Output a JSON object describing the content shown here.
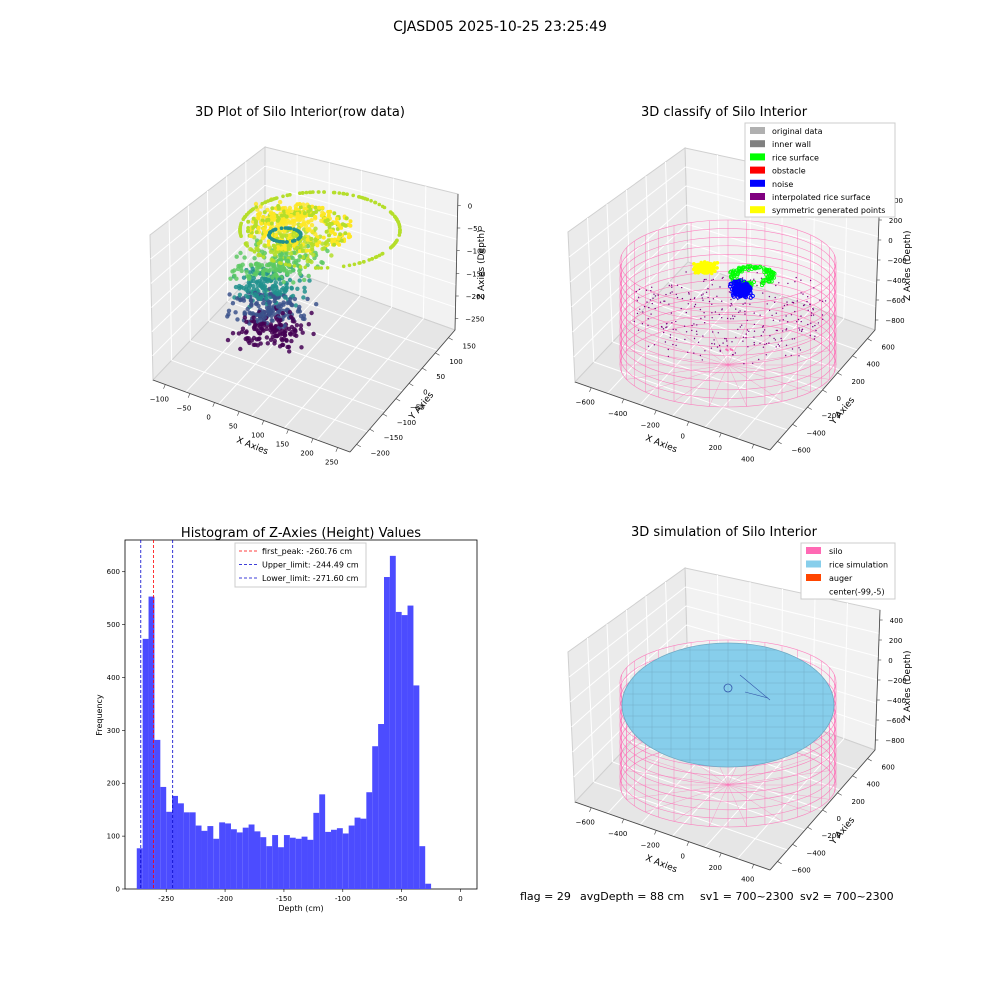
{
  "figure": {
    "suptitle": "CJASD05 2025-10-25 23:25:49",
    "status": {
      "flag": "flag = 29",
      "avg_depth": "avgDepth = 88 cm",
      "sv1": "sv1 = 700~2300",
      "sv2": "sv2 = 700~2300"
    }
  },
  "colors": {
    "viridis": [
      "#440154",
      "#3b528b",
      "#21908d",
      "#5dc963",
      "#b5de2b",
      "#fde725"
    ],
    "original_data": "#b0b0b0",
    "inner_wall": "#808080",
    "rice_surface": "#00ff00",
    "obstacle": "#ff0000",
    "noise": "#0000ff",
    "interpolated": "#800080",
    "symmetric": "#ffff00",
    "silo": "#ff69b4",
    "rice_sim": "#87ceeb",
    "auger": "#ff4500",
    "hist_bar": "#4c4cff",
    "peak_line": "#ff0000",
    "limit_line": "#0000cc"
  },
  "chart_data": [
    {
      "type": "scatter",
      "title": "3D Plot of Silo Interior(row data)",
      "xlabel": "X Axies",
      "ylabel": "Y Axies",
      "zlabel": "Z Axies (Depth)",
      "x_ticks": [
        "−100",
        "−50",
        "0",
        "50",
        "100",
        "150",
        "200",
        "250"
      ],
      "y_ticks": [
        "150",
        "100",
        "50",
        "0",
        "−50",
        "−100",
        "−150",
        "−200"
      ],
      "z_ticks": [
        "0",
        "−50",
        "−100",
        "−150",
        "−200",
        "−250"
      ],
      "grid": true
    },
    {
      "type": "scatter",
      "title": "3D classify of Silo Interior",
      "xlabel": "X Axies",
      "ylabel": "Y Axies",
      "zlabel": "Z Axies (Depth)",
      "x_ticks": [
        "−600",
        "−400",
        "−200",
        "0",
        "200",
        "400"
      ],
      "y_ticks": [
        "600",
        "400",
        "200",
        "0",
        "−200",
        "−400",
        "−600"
      ],
      "z_ticks": [
        "400",
        "200",
        "0",
        "−200",
        "−400",
        "−600",
        "−800"
      ],
      "legend": [
        {
          "label": "original data",
          "color": "#b0b0b0"
        },
        {
          "label": "inner wall",
          "color": "#808080"
        },
        {
          "label": "rice surface",
          "color": "#00ff00"
        },
        {
          "label": "obstacle",
          "color": "#ff0000"
        },
        {
          "label": "noise",
          "color": "#0000ff"
        },
        {
          "label": "interpolated rice surface",
          "color": "#800080"
        },
        {
          "label": "symmetric generated points",
          "color": "#ffff00"
        }
      ],
      "legend_position": "top-right",
      "grid": true
    },
    {
      "type": "bar",
      "title": "Histogram of Z-Axies (Height) Values",
      "xlabel": "Depth (cm)",
      "ylabel": "Frequency",
      "bin_width": 5,
      "bins": [
        {
          "start": -275,
          "count": 77
        },
        {
          "start": -270,
          "count": 473
        },
        {
          "start": -265,
          "count": 553
        },
        {
          "start": -260,
          "count": 282
        },
        {
          "start": -255,
          "count": 193
        },
        {
          "start": -250,
          "count": 146
        },
        {
          "start": -245,
          "count": 176
        },
        {
          "start": -240,
          "count": 162
        },
        {
          "start": -235,
          "count": 145
        },
        {
          "start": -230,
          "count": 145
        },
        {
          "start": -225,
          "count": 120
        },
        {
          "start": -220,
          "count": 110
        },
        {
          "start": -215,
          "count": 119
        },
        {
          "start": -210,
          "count": 95
        },
        {
          "start": -205,
          "count": 126
        },
        {
          "start": -200,
          "count": 124
        },
        {
          "start": -195,
          "count": 113
        },
        {
          "start": -190,
          "count": 107
        },
        {
          "start": -185,
          "count": 116
        },
        {
          "start": -180,
          "count": 122
        },
        {
          "start": -175,
          "count": 109
        },
        {
          "start": -170,
          "count": 98
        },
        {
          "start": -165,
          "count": 81
        },
        {
          "start": -160,
          "count": 102
        },
        {
          "start": -155,
          "count": 79
        },
        {
          "start": -150,
          "count": 102
        },
        {
          "start": -145,
          "count": 97
        },
        {
          "start": -140,
          "count": 95
        },
        {
          "start": -135,
          "count": 99
        },
        {
          "start": -130,
          "count": 93
        },
        {
          "start": -125,
          "count": 144
        },
        {
          "start": -120,
          "count": 179
        },
        {
          "start": -115,
          "count": 108
        },
        {
          "start": -110,
          "count": 112
        },
        {
          "start": -105,
          "count": 115
        },
        {
          "start": -100,
          "count": 105
        },
        {
          "start": -95,
          "count": 120
        },
        {
          "start": -90,
          "count": 135
        },
        {
          "start": -85,
          "count": 133
        },
        {
          "start": -80,
          "count": 183
        },
        {
          "start": -75,
          "count": 270
        },
        {
          "start": -70,
          "count": 312
        },
        {
          "start": -65,
          "count": 590
        },
        {
          "start": -60,
          "count": 630
        },
        {
          "start": -55,
          "count": 524
        },
        {
          "start": -50,
          "count": 518
        },
        {
          "start": -45,
          "count": 536
        },
        {
          "start": -40,
          "count": 385
        },
        {
          "start": -35,
          "count": 81
        },
        {
          "start": -30,
          "count": 10
        }
      ],
      "xlim": [
        -285,
        14
      ],
      "ylim": [
        0,
        660
      ],
      "x_ticks": [
        -250,
        -200,
        -150,
        -100,
        -50,
        0
      ],
      "y_ticks": [
        0,
        100,
        200,
        300,
        400,
        500,
        600
      ],
      "vlines": [
        {
          "value": -260.76,
          "label": "first_peak: -260.76 cm",
          "color": "#ff0000"
        },
        {
          "value": -244.49,
          "label": "Upper_limit: -244.49 cm",
          "color": "#0000cc"
        },
        {
          "value": -271.6,
          "label": "Lower_limit: -271.60 cm",
          "color": "#0000cc"
        }
      ],
      "legend_position": "top-center",
      "grid": false
    },
    {
      "type": "scatter",
      "title": "3D simulation of Silo Interior",
      "xlabel": "X Axies",
      "ylabel": "Y Axies",
      "zlabel": "Z Axies (Depth)",
      "x_ticks": [
        "−600",
        "−400",
        "−200",
        "0",
        "200",
        "400"
      ],
      "y_ticks": [
        "600",
        "400",
        "200",
        "0",
        "−200",
        "−400",
        "−600"
      ],
      "z_ticks": [
        "400",
        "200",
        "0",
        "−200",
        "−400",
        "−600",
        "−800"
      ],
      "legend": [
        {
          "label": "silo",
          "color": "#ff69b4"
        },
        {
          "label": "rice simulation",
          "color": "#87ceeb"
        },
        {
          "label": "auger",
          "color": "#ff4500"
        },
        {
          "label": "center(-99,-5)",
          "color": ""
        }
      ],
      "legend_position": "top-right",
      "grid": true
    }
  ]
}
